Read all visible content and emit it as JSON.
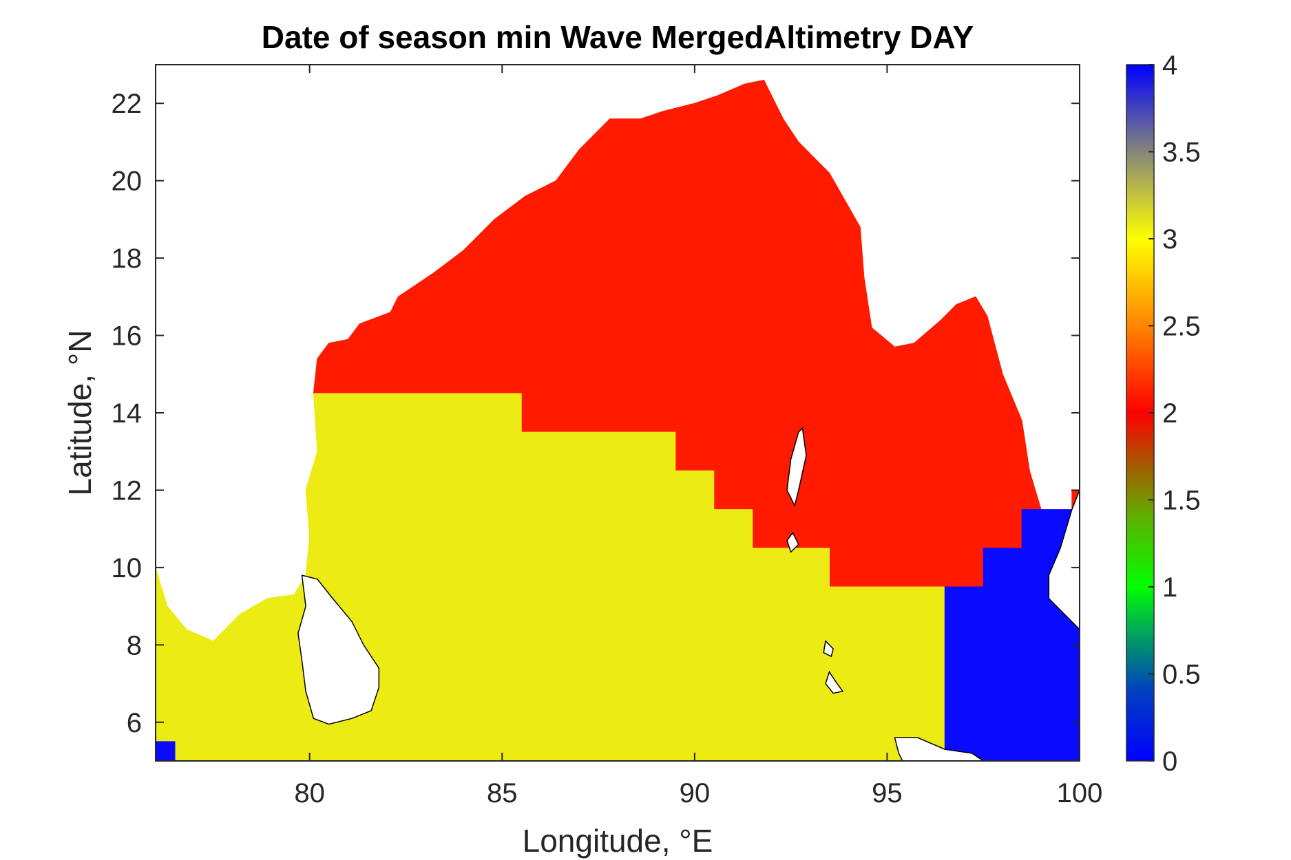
{
  "chart_data": {
    "type": "heatmap",
    "title": "Date of season min Wave MergedAltimetry DAY",
    "xlabel": "Longitude, °E",
    "ylabel": "Latitude, °N",
    "xlim": [
      76,
      100
    ],
    "ylim": [
      5,
      23
    ],
    "xticks": [
      80,
      85,
      90,
      95,
      100
    ],
    "xtick_labels": [
      "80",
      "85",
      "90",
      "95",
      "100"
    ],
    "yticks": [
      6,
      8,
      10,
      12,
      14,
      16,
      18,
      20,
      22
    ],
    "ytick_labels": [
      "6",
      "8",
      "10",
      "12",
      "14",
      "16",
      "18",
      "20",
      "22"
    ],
    "colorbar": {
      "range": [
        0,
        4
      ],
      "ticks": [
        0,
        0.5,
        1,
        1.5,
        2,
        2.5,
        3,
        3.5,
        4
      ],
      "tick_labels": [
        "0",
        "0.5",
        "1",
        "1.5",
        "2",
        "2.5",
        "3",
        "3.5",
        "4"
      ]
    },
    "regions": [
      {
        "name": "red",
        "value": 2,
        "color": "#ff1a00",
        "lon_lat": [
          [
            80.1,
            14.5
          ],
          [
            85.5,
            14.5
          ],
          [
            85.5,
            13.5
          ],
          [
            89.5,
            13.5
          ],
          [
            89.5,
            12.5
          ],
          [
            90.5,
            12.5
          ],
          [
            90.5,
            11.5
          ],
          [
            91.5,
            11.5
          ],
          [
            91.5,
            10.5
          ],
          [
            93.5,
            10.5
          ],
          [
            93.5,
            9.5
          ],
          [
            97.5,
            9.5
          ],
          [
            97.5,
            10.5
          ],
          [
            98.5,
            10.5
          ],
          [
            98.5,
            11.5
          ],
          [
            99.0,
            11.5
          ],
          [
            98.7,
            12.5
          ],
          [
            98.5,
            13.8
          ],
          [
            98.0,
            15.0
          ],
          [
            97.6,
            16.5
          ],
          [
            97.3,
            17.0
          ],
          [
            96.8,
            16.8
          ],
          [
            96.4,
            16.4
          ],
          [
            95.7,
            15.8
          ],
          [
            95.2,
            15.7
          ],
          [
            94.6,
            16.2
          ],
          [
            94.4,
            17.5
          ],
          [
            94.3,
            18.8
          ],
          [
            93.9,
            19.5
          ],
          [
            93.5,
            20.2
          ],
          [
            92.7,
            21.0
          ],
          [
            92.3,
            21.6
          ],
          [
            91.8,
            22.6
          ],
          [
            91.3,
            22.5
          ],
          [
            90.6,
            22.2
          ],
          [
            90.0,
            22.0
          ],
          [
            89.2,
            21.8
          ],
          [
            88.6,
            21.6
          ],
          [
            87.8,
            21.6
          ],
          [
            87.0,
            20.8
          ],
          [
            86.4,
            20.0
          ],
          [
            85.6,
            19.6
          ],
          [
            84.8,
            19.0
          ],
          [
            84.0,
            18.2
          ],
          [
            83.2,
            17.6
          ],
          [
            82.3,
            17.0
          ],
          [
            82.1,
            16.6
          ],
          [
            81.3,
            16.3
          ],
          [
            81.0,
            15.9
          ],
          [
            80.5,
            15.8
          ],
          [
            80.2,
            15.4
          ],
          [
            80.1,
            14.5
          ]
        ]
      },
      {
        "name": "yellow",
        "value": 3,
        "color": "#ecec14",
        "lon_lat": [
          [
            76.0,
            10.0
          ],
          [
            76.3,
            9.0
          ],
          [
            76.8,
            8.4
          ],
          [
            77.5,
            8.1
          ],
          [
            78.2,
            8.8
          ],
          [
            78.9,
            9.2
          ],
          [
            79.6,
            9.3
          ],
          [
            79.9,
            9.8
          ],
          [
            80.0,
            10.8
          ],
          [
            79.9,
            12.0
          ],
          [
            80.2,
            13.0
          ],
          [
            80.1,
            14.5
          ],
          [
            85.5,
            14.5
          ],
          [
            85.5,
            13.5
          ],
          [
            89.5,
            13.5
          ],
          [
            89.5,
            12.5
          ],
          [
            90.5,
            12.5
          ],
          [
            90.5,
            11.5
          ],
          [
            91.5,
            11.5
          ],
          [
            91.5,
            10.5
          ],
          [
            93.5,
            10.5
          ],
          [
            93.5,
            9.5
          ],
          [
            96.5,
            9.5
          ],
          [
            96.5,
            5.5
          ],
          [
            97.5,
            5.5
          ],
          [
            97.5,
            5.0
          ],
          [
            76.5,
            5.0
          ],
          [
            76.5,
            5.5
          ],
          [
            76.0,
            5.5
          ]
        ]
      },
      {
        "name": "blue",
        "value": 0,
        "color": "#0a0aff",
        "lon_lat": [
          [
            96.5,
            5.0
          ],
          [
            96.5,
            9.5
          ],
          [
            97.5,
            9.5
          ],
          [
            97.5,
            10.5
          ],
          [
            98.5,
            10.5
          ],
          [
            98.5,
            11.5
          ],
          [
            100.0,
            11.5
          ],
          [
            100.0,
            5.0
          ]
        ]
      },
      {
        "name": "blue-corner",
        "value": 0,
        "color": "#0a0aff",
        "lon_lat": [
          [
            76.0,
            5.0
          ],
          [
            76.5,
            5.0
          ],
          [
            76.5,
            5.5
          ],
          [
            76.0,
            5.5
          ]
        ]
      },
      {
        "name": "red-east",
        "value": 2,
        "color": "#ff1a00",
        "lon_lat": [
          [
            99.8,
            11.5
          ],
          [
            100.0,
            11.5
          ],
          [
            100.0,
            12.0
          ],
          [
            99.8,
            12.0
          ]
        ]
      }
    ],
    "land": [
      {
        "name": "sri-lanka",
        "lon_lat": [
          [
            79.8,
            9.8
          ],
          [
            80.2,
            9.7
          ],
          [
            80.6,
            9.2
          ],
          [
            81.1,
            8.6
          ],
          [
            81.4,
            8.0
          ],
          [
            81.8,
            7.4
          ],
          [
            81.8,
            6.9
          ],
          [
            81.6,
            6.3
          ],
          [
            81.1,
            6.1
          ],
          [
            80.5,
            5.95
          ],
          [
            80.1,
            6.1
          ],
          [
            79.9,
            6.8
          ],
          [
            79.8,
            7.6
          ],
          [
            79.7,
            8.3
          ],
          [
            79.9,
            9.0
          ],
          [
            79.8,
            9.8
          ]
        ]
      },
      {
        "name": "malay-peninsula",
        "lon_lat": [
          [
            97.5,
            5.0
          ],
          [
            97.2,
            5.2
          ],
          [
            96.5,
            5.3
          ],
          [
            95.8,
            5.6
          ],
          [
            95.2,
            5.6
          ],
          [
            95.3,
            5.2
          ],
          [
            95.4,
            5.0
          ]
        ]
      },
      {
        "name": "thailand-east",
        "lon_lat": [
          [
            100.0,
            12.0
          ],
          [
            99.8,
            11.5
          ],
          [
            99.5,
            10.5
          ],
          [
            99.2,
            9.8
          ],
          [
            99.2,
            9.2
          ],
          [
            99.6,
            8.8
          ],
          [
            100.0,
            8.4
          ]
        ]
      },
      {
        "name": "andaman-north",
        "lon_lat": [
          [
            92.8,
            13.6
          ],
          [
            92.9,
            12.9
          ],
          [
            92.7,
            12.0
          ],
          [
            92.6,
            11.6
          ],
          [
            92.4,
            12.0
          ],
          [
            92.5,
            12.8
          ],
          [
            92.7,
            13.5
          ]
        ]
      },
      {
        "name": "little-andaman",
        "lon_lat": [
          [
            92.55,
            10.9
          ],
          [
            92.7,
            10.6
          ],
          [
            92.5,
            10.4
          ],
          [
            92.4,
            10.7
          ]
        ]
      },
      {
        "name": "car-nicobar",
        "lon_lat": [
          [
            93.5,
            7.3
          ],
          [
            93.7,
            7.0
          ],
          [
            93.85,
            6.8
          ],
          [
            93.6,
            6.75
          ],
          [
            93.4,
            7.0
          ]
        ]
      },
      {
        "name": "nicobar-islands",
        "lon_lat": [
          [
            93.4,
            8.1
          ],
          [
            93.6,
            7.9
          ],
          [
            93.55,
            7.7
          ],
          [
            93.35,
            7.8
          ]
        ]
      }
    ]
  }
}
